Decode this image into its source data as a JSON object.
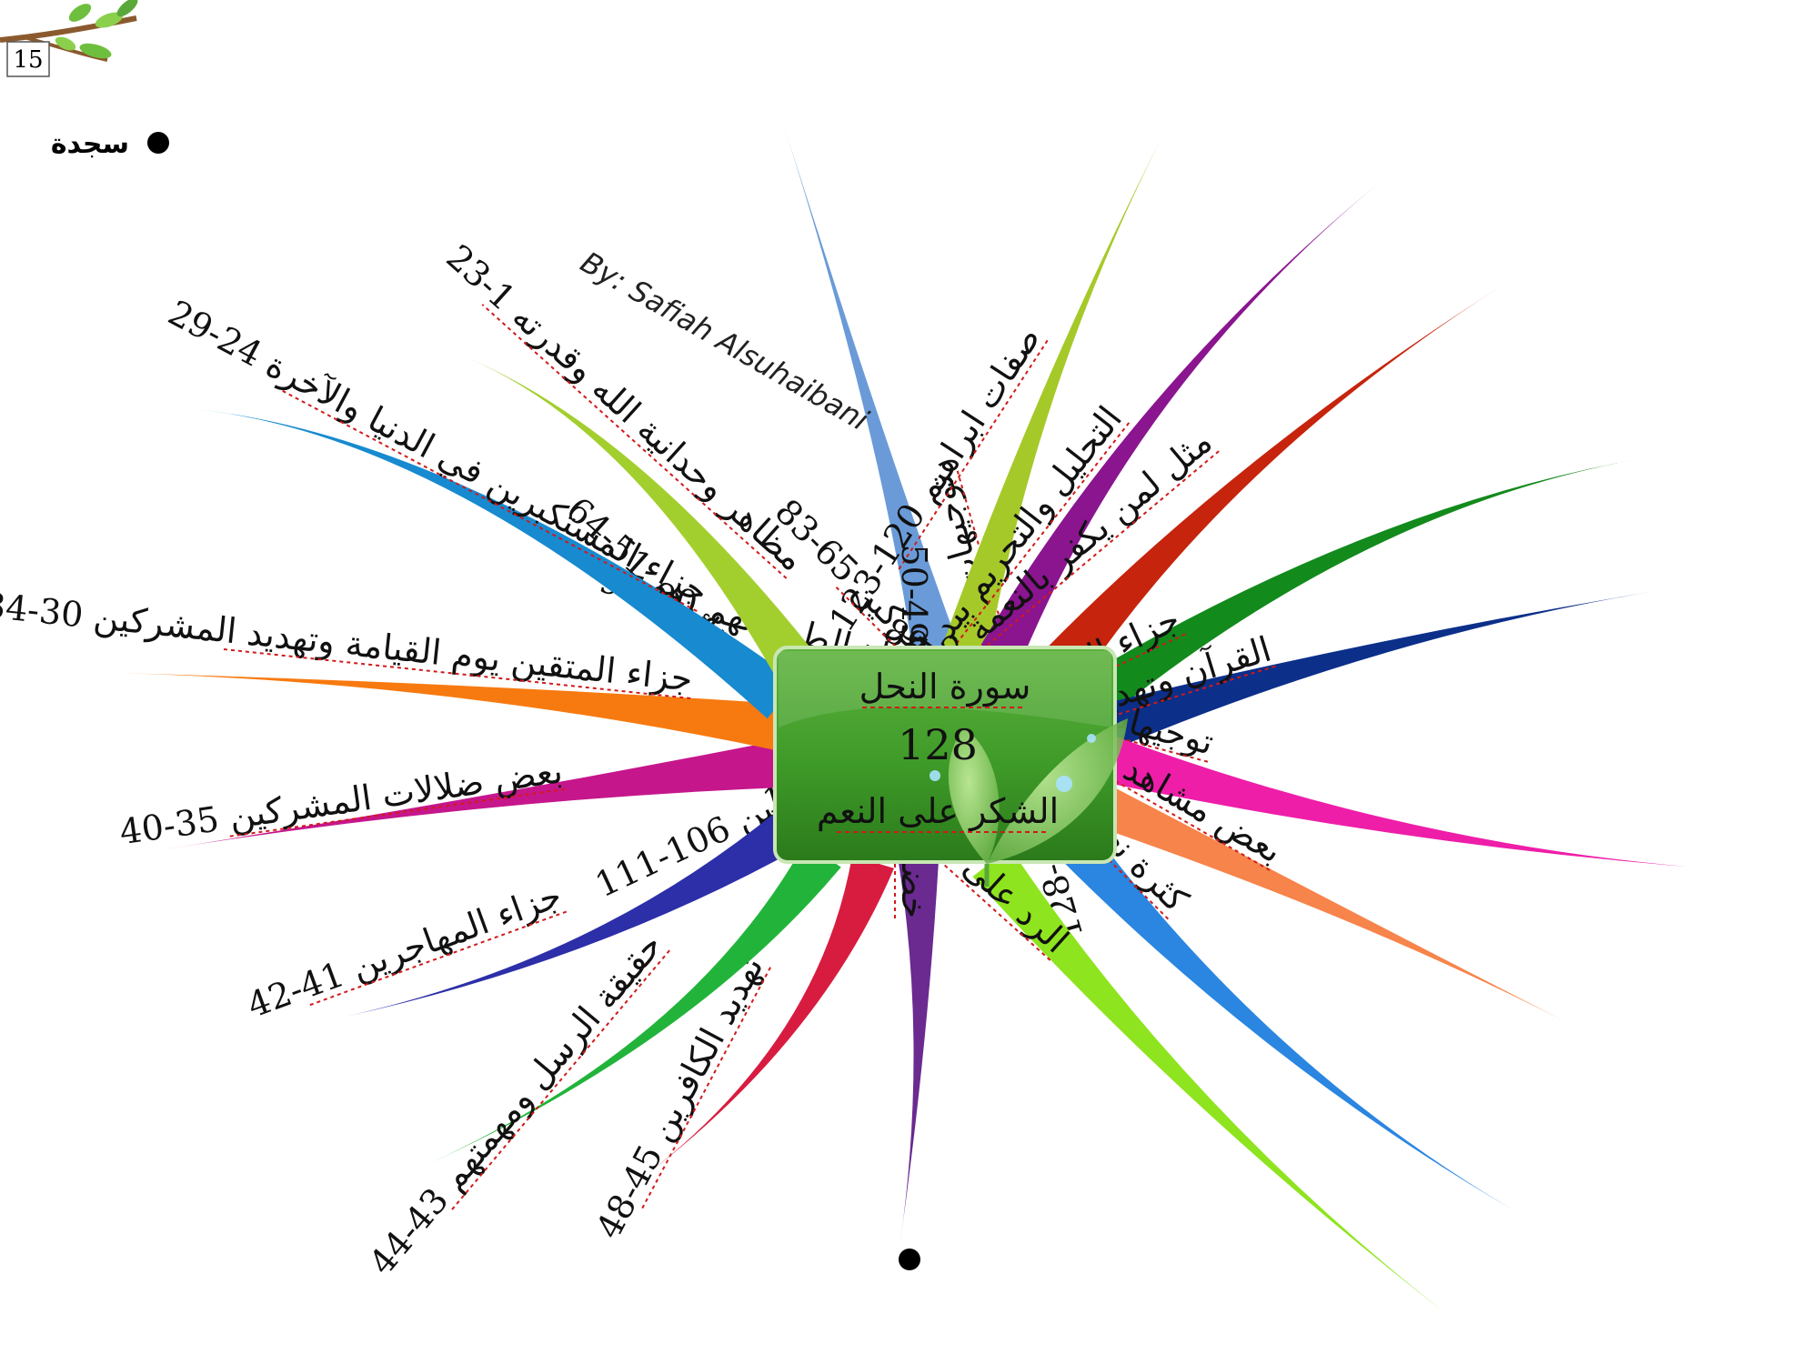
{
  "page": {
    "number": "15"
  },
  "legend": {
    "label": "سجدة"
  },
  "author": "By: Safiah Alsuhaibani",
  "center": {
    "title": "سورة النحل",
    "count": "128",
    "theme": "الشكر على النعم"
  },
  "branches": [
    {
      "label": "توجيهات للنبي و الدعاة 124-128",
      "color": "#6a9bd8"
    },
    {
      "label": "صفات ابراهيم 120-123",
      "color": "#a6c92a"
    },
    {
      "label": "التحليل والتحريم بيد الله 114-119",
      "color": "#8a158f"
    },
    {
      "label": "مثل لمن يكفر بالنعمة 112-113",
      "color": "#c6240c"
    },
    {
      "label": "جزاء المرتدين وصفاتهم والمؤمنين 106-111",
      "color": "#138a1c"
    },
    {
      "label": "القرآن وتهديد المفترين عليه 98-105",
      "color": "#0c2f8a"
    },
    {
      "label": "توجيهات للمؤمنين والحياة الطيبة لهم 90-97",
      "color": "#ee1ea8"
    },
    {
      "label": "بعض مشاهد يوم القيامة 84-89",
      "color": "#f7844a"
    },
    {
      "label": "كثرة نعم الله وكفران المشركين 65-83",
      "color": "#2a86e0"
    },
    {
      "label": "الرد على المشركين في فساد عقائدهم 51-64",
      "color": "#8ee41e"
    },
    {
      "label": "خضوع كل شئ لله 49-50",
      "color": "#6a2a90"
    },
    {
      "label": "تهديد الكافرين 45-48",
      "color": "#d81c40"
    },
    {
      "label": "حقيقة الرسل ومهمتهم 43-44",
      "color": "#22b43a"
    },
    {
      "label": "جزاء المهاجرين 41-42",
      "color": "#2c2fa8"
    },
    {
      "label": "بعض ضلالات المشركين 35-40",
      "color": "#c6168c"
    },
    {
      "label": "جزاء المتقين يوم القيامة وتهديد المشركين 30-34",
      "color": "#f77a10"
    },
    {
      "label": "جزاء المستكبرين في الدنيا والآخرة 24-29",
      "color": "#178ad0"
    },
    {
      "label": "مظاهر وحدانية الله وقدرته 1-23",
      "color": "#a3cf2e"
    }
  ],
  "colors": {
    "center_box": "#3f9a2c",
    "center_box_light": "#7cc455",
    "leaf": "#8fcf6a",
    "underline": "#d11a1a"
  }
}
